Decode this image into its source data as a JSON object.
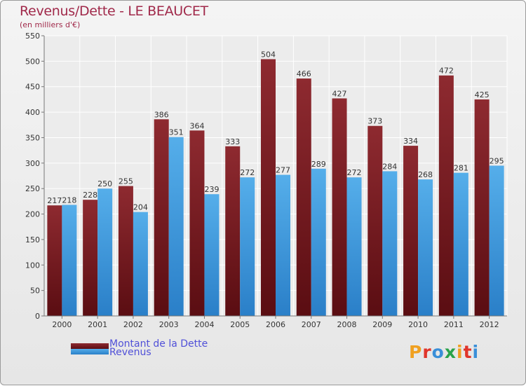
{
  "chart_data": {
    "type": "bar",
    "title": "Revenus/Dette - LE BEAUCET",
    "subtitle": "(en milliers d'€)",
    "xlabel": "",
    "ylabel": "",
    "ylim": [
      0,
      550
    ],
    "ytick_step": 50,
    "yticks": [
      "0",
      "50",
      "100",
      "150",
      "200",
      "250",
      "300",
      "350",
      "400",
      "450",
      "500",
      "550"
    ],
    "grid": true,
    "categories": [
      "2000",
      "2001",
      "2002",
      "2003",
      "2004",
      "2005",
      "2006",
      "2007",
      "2008",
      "2009",
      "2010",
      "2011",
      "2012"
    ],
    "series": [
      {
        "name": "Montant de la Dette",
        "color": "#7a1c22",
        "values": [
          217,
          228,
          255,
          386,
          364,
          333,
          504,
          466,
          427,
          373,
          334,
          472,
          425
        ]
      },
      {
        "name": "Revenus",
        "color": "#3f9be3",
        "values": [
          218,
          250,
          204,
          351,
          239,
          272,
          277,
          289,
          272,
          284,
          268,
          281,
          295
        ]
      }
    ],
    "legend_position": "bottom-left"
  },
  "logo": {
    "letters": [
      "P",
      "r",
      "o",
      "x",
      "i",
      "t",
      "i"
    ],
    "colors": [
      "#f0a020",
      "#e0352b",
      "#3a8fd8",
      "#2aa34a",
      "#f0a020",
      "#e0352b",
      "#3a8fd8"
    ]
  }
}
